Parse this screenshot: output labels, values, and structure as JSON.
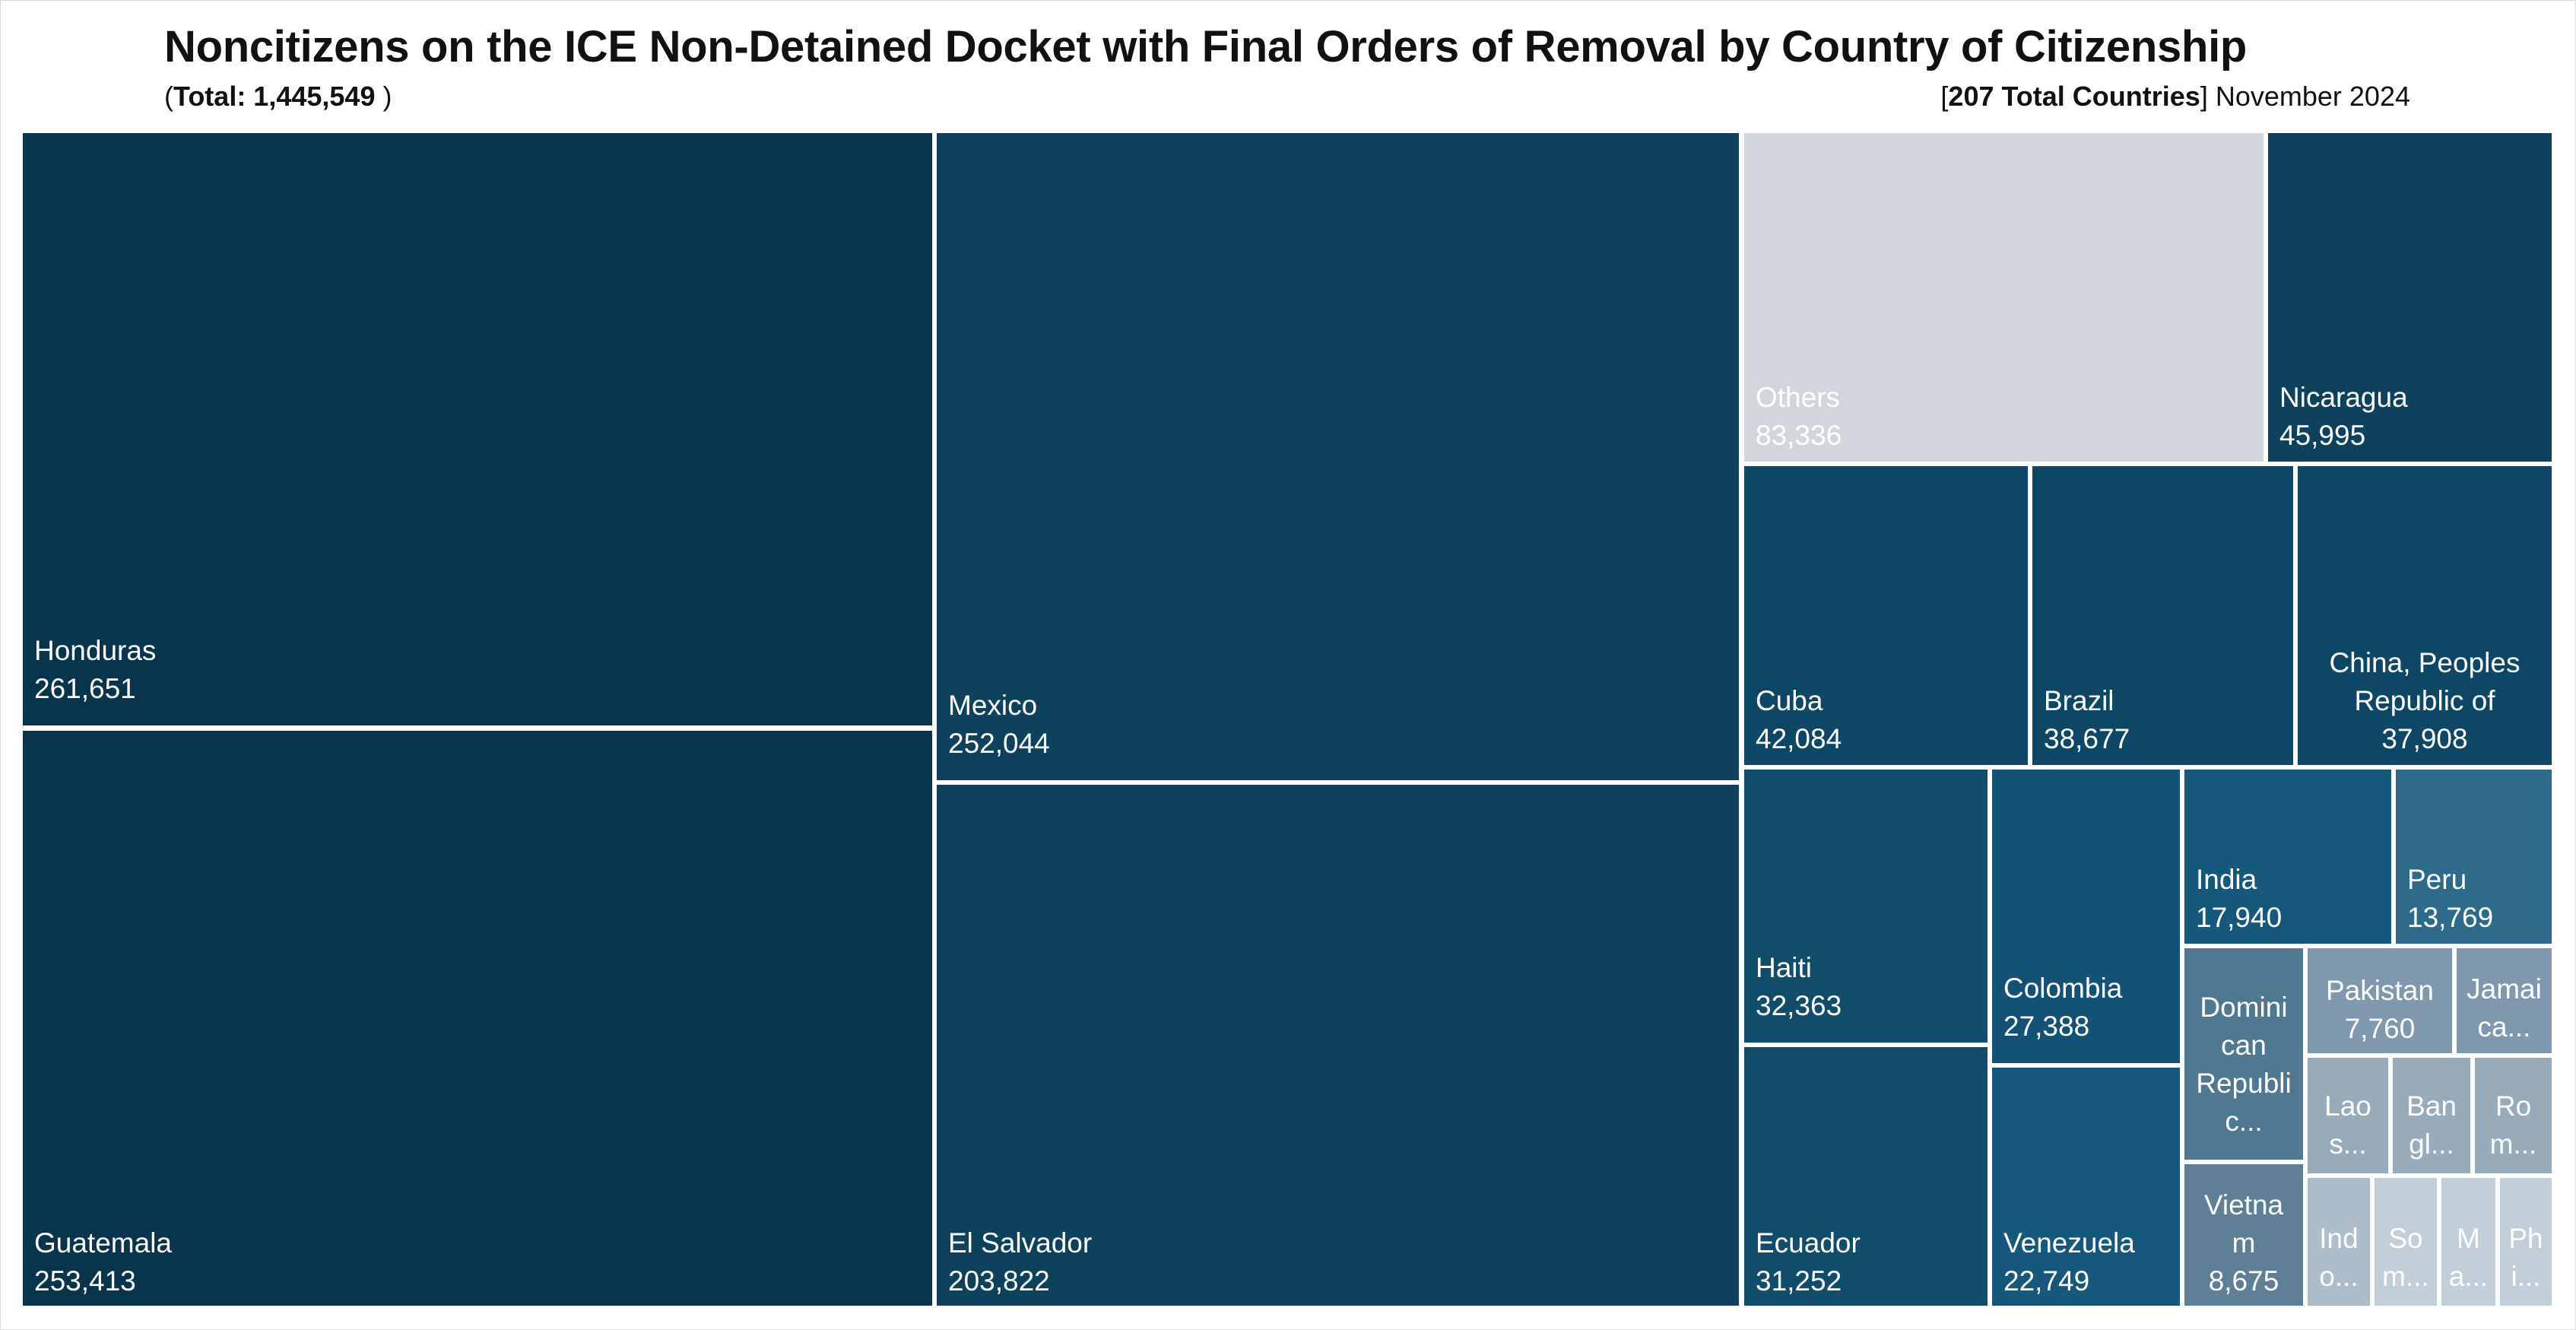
{
  "header": {
    "title": "Noncitizens on the ICE Non-Detained Docket with Final Orders of Removal by Country of Citizenship",
    "total_prefix": "(",
    "total_label": "Total: 1,445,549",
    "total_suffix": " )",
    "countries_open": "[",
    "countries_label": "207 Total Countries",
    "countries_close": "]",
    "date": " November 2024"
  },
  "chart_data": {
    "type": "treemap",
    "title": "Noncitizens on the ICE Non-Detained Docket with Final Orders of Removal by Country of Citizenship",
    "total": 1445549,
    "total_countries": 207,
    "date": "November 2024",
    "colors": {
      "darkest": "#08344c",
      "dark": "#0d415c",
      "mid": "#114c6b",
      "light": "#16587c",
      "lighter": "#2e6a8a",
      "slate": "#507891",
      "grey1": "#7f98ad",
      "grey2": "#97abbb",
      "grey3": "#adbdca",
      "grey4": "#c2ced8",
      "others": "#d2d6dc"
    },
    "items": [
      {
        "label": "Honduras",
        "value": 261651,
        "display": "261,651",
        "color": "#08344c"
      },
      {
        "label": "Guatemala",
        "value": 253413,
        "display": "253,413",
        "color": "#08344c"
      },
      {
        "label": "Mexico",
        "value": 252044,
        "display": "252,044",
        "color": "#0d415c"
      },
      {
        "label": "El Salvador",
        "value": 203822,
        "display": "203,822",
        "color": "#0d415c"
      },
      {
        "label": "Others",
        "value": 83336,
        "display": "83,336",
        "color": "#d2d6dc"
      },
      {
        "label": "Nicaragua",
        "value": 45995,
        "display": "45,995",
        "color": "#0d415c"
      },
      {
        "label": "Cuba",
        "value": 42084,
        "display": "42,084",
        "color": "#0e4765"
      },
      {
        "label": "Brazil",
        "value": 38677,
        "display": "38,677",
        "color": "#0e4765"
      },
      {
        "label": "China, Peoples Republic of",
        "value": 37908,
        "display": "37,908",
        "color": "#0e4765"
      },
      {
        "label": "Haiti",
        "value": 32363,
        "display": "32,363",
        "color": "#114c6b"
      },
      {
        "label": "Ecuador",
        "value": 31252,
        "display": "31,252",
        "color": "#114c6b"
      },
      {
        "label": "Colombia",
        "value": 27388,
        "display": "27,388",
        "color": "#135275"
      },
      {
        "label": "Venezuela",
        "value": 22749,
        "display": "22,749",
        "color": "#16587c"
      },
      {
        "label": "India",
        "value": 17940,
        "display": "17,940",
        "color": "#16587c"
      },
      {
        "label": "Peru",
        "value": 13769,
        "display": "13,769",
        "color": "#2e6a8a"
      },
      {
        "label": "Dominican Republic",
        "value": null,
        "display": "",
        "color": "#507891"
      },
      {
        "label": "Pakistan",
        "value": 7760,
        "display": "7,760",
        "color": "#7f98ad"
      },
      {
        "label": "Jamaica",
        "value": null,
        "display": "",
        "color": "#7f98ad"
      },
      {
        "label": "Vietnam",
        "value": 8675,
        "display": "8,675",
        "color": "#5e7f96"
      },
      {
        "label": "Laos",
        "value": null,
        "display": "",
        "color": "#97abbb"
      },
      {
        "label": "Bangladesh",
        "value": null,
        "display": "",
        "color": "#97abbb"
      },
      {
        "label": "Romania",
        "value": null,
        "display": "",
        "color": "#97abbb"
      },
      {
        "label": "Indonesia",
        "value": null,
        "display": "",
        "color": "#adbdca"
      },
      {
        "label": "Somalia",
        "value": null,
        "display": "",
        "color": "#c2ced8"
      },
      {
        "label": "Mauritania",
        "value": null,
        "display": "",
        "color": "#c2ced8"
      },
      {
        "label": "Philippines",
        "value": null,
        "display": "",
        "color": "#c2ced8"
      }
    ],
    "displayed_text": {
      "Honduras": [
        "Honduras",
        "261,651"
      ],
      "Guatemala": [
        "Guatemala",
        "253,413"
      ],
      "Mexico": [
        "Mexico",
        "252,044"
      ],
      "El Salvador": [
        "El Salvador",
        "203,822"
      ],
      "Others": [
        "Others",
        "83,336"
      ],
      "Nicaragua": [
        "Nicaragua",
        "45,995"
      ],
      "Cuba": [
        "Cuba",
        "42,084"
      ],
      "Brazil": [
        "Brazil",
        "38,677"
      ],
      "China, Peoples Republic of": [
        "China, Peoples",
        "Republic of",
        "37,908"
      ],
      "Haiti": [
        "Haiti",
        "32,363"
      ],
      "Ecuador": [
        "Ecuador",
        "31,252"
      ],
      "Colombia": [
        "Colombia",
        "27,388"
      ],
      "Venezuela": [
        "Venezuela",
        "22,749"
      ],
      "India": [
        "India",
        "17,940"
      ],
      "Peru": [
        "Peru",
        "13,769"
      ],
      "Dominican Republic": [
        "Domini",
        "can",
        "Republi",
        "c..."
      ],
      "Pakistan": [
        "Pakistan",
        "7,760"
      ],
      "Jamaica": [
        "Jamai",
        "ca..."
      ],
      "Vietnam": [
        "Vietna",
        "m",
        "8,675"
      ],
      "Laos": [
        "Lao",
        "s..."
      ],
      "Bangladesh": [
        "Ban",
        "gl..."
      ],
      "Romania": [
        "Ro",
        "m..."
      ],
      "Indonesia": [
        "Ind",
        "o..."
      ],
      "Somalia": [
        "So",
        "m..."
      ],
      "Mauritania": [
        "M",
        "a..."
      ],
      "Philippines": [
        "Ph",
        "i..."
      ]
    }
  }
}
